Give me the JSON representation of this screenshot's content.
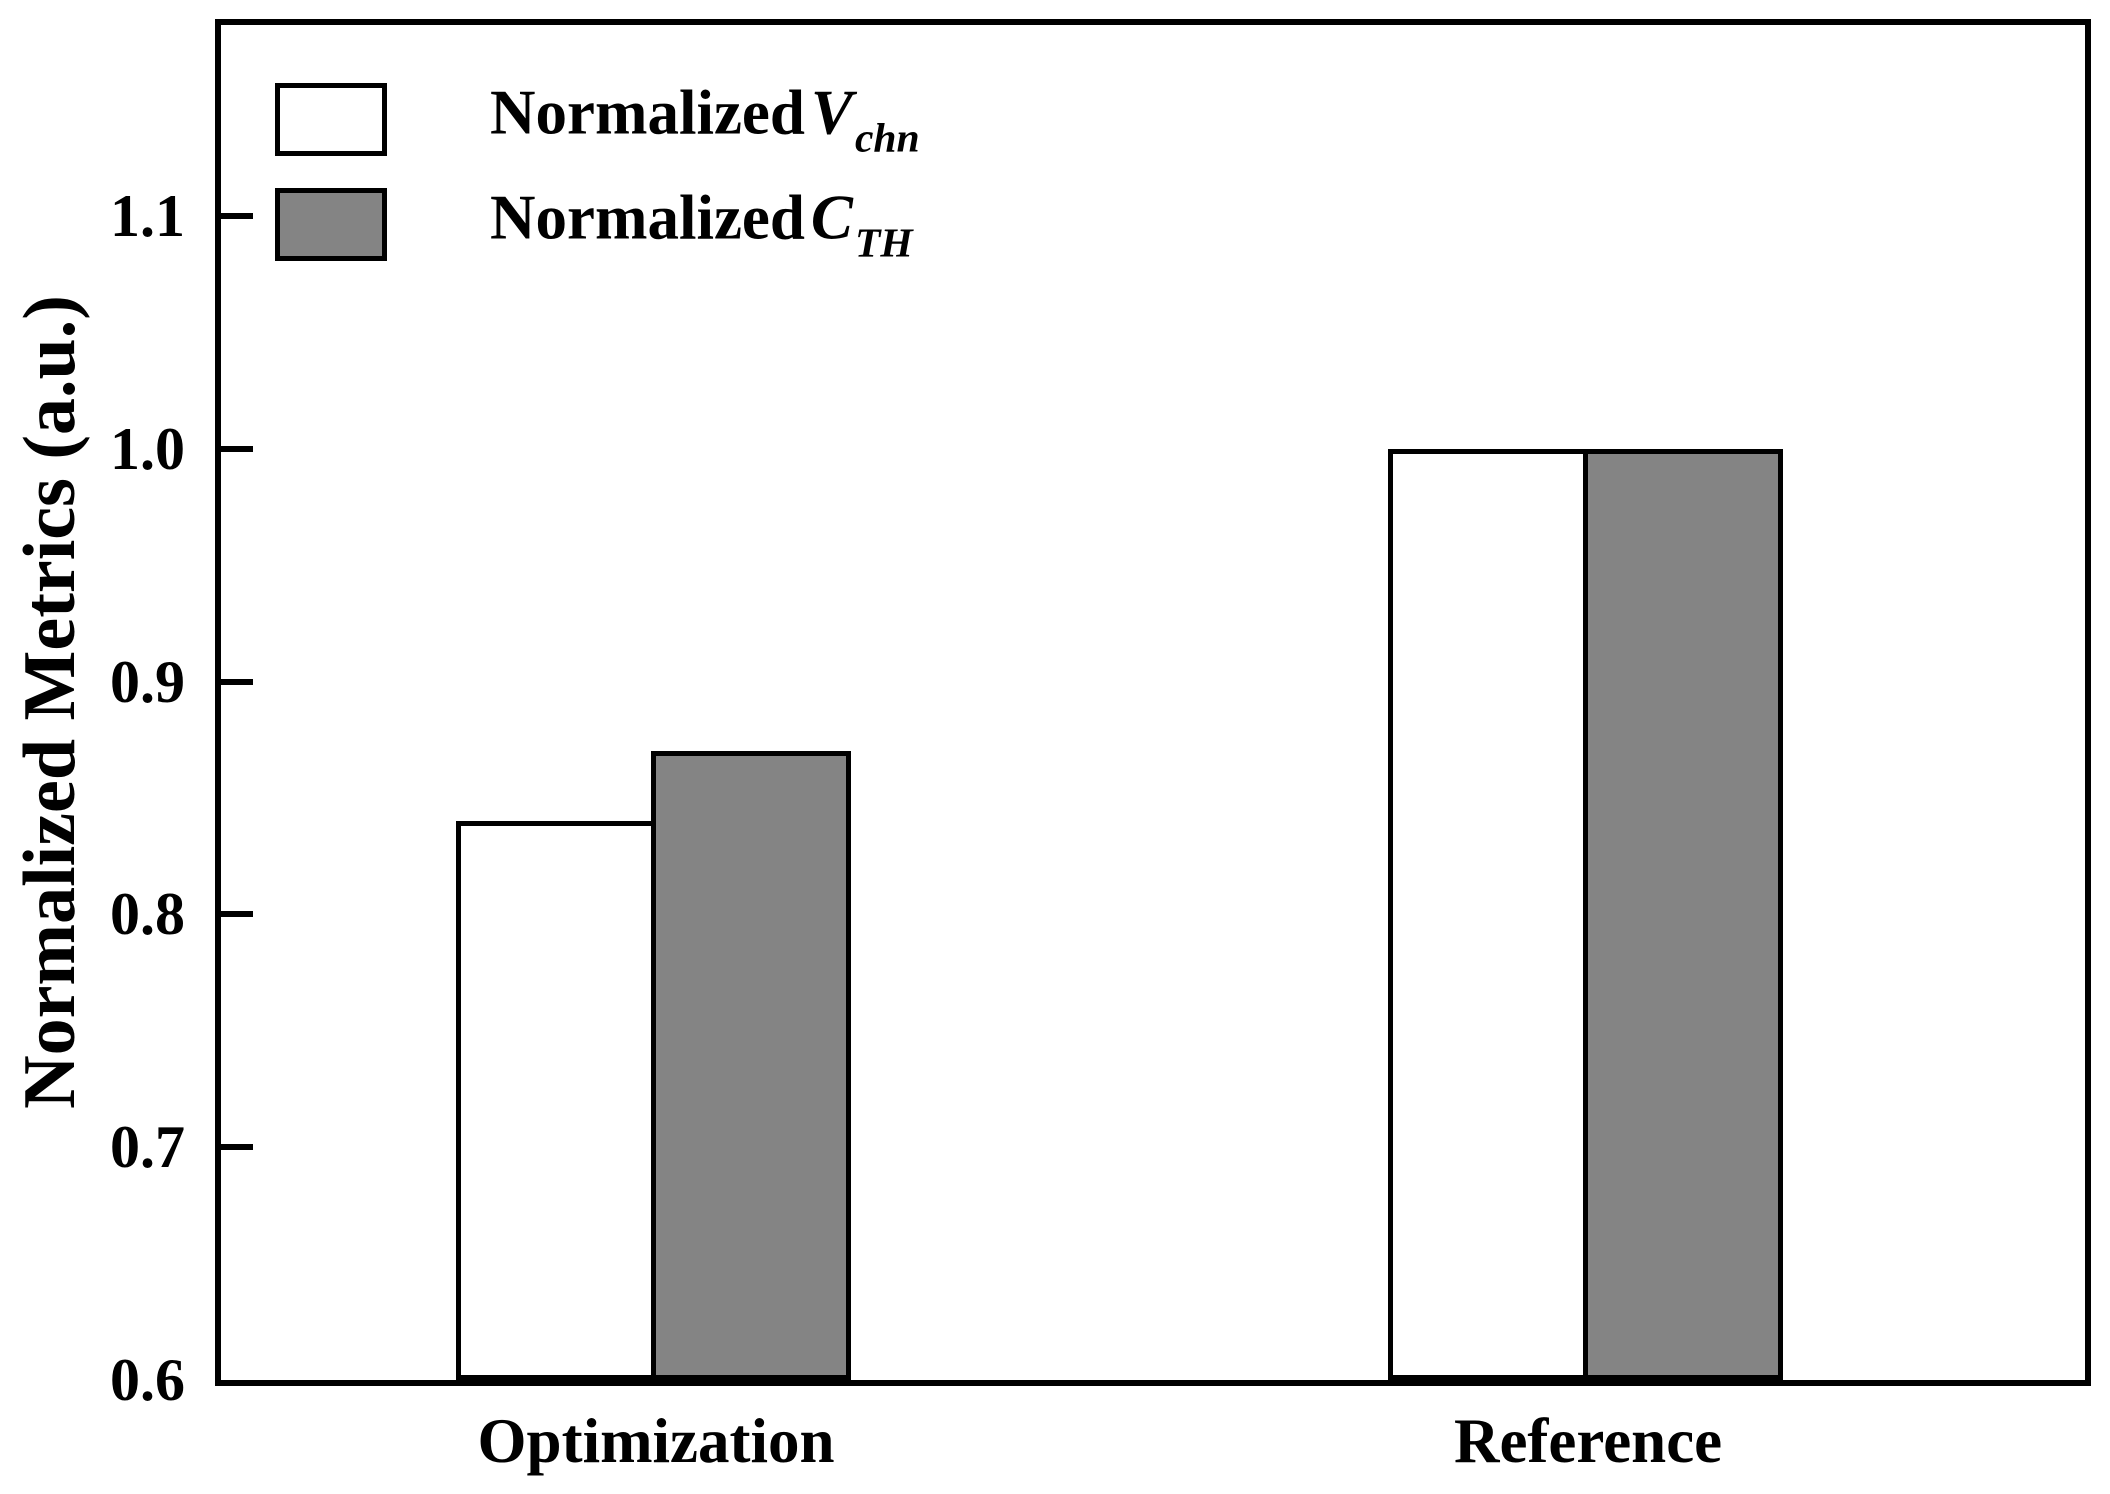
{
  "figure": {
    "background": "#ffffff",
    "frame_color": "#000000"
  },
  "chart_data": {
    "type": "bar",
    "title": "",
    "xlabel": "",
    "ylabel": "Normalized Metrics (a.u.)",
    "categories": [
      "Optimization",
      "Reference"
    ],
    "series": [
      {
        "name": "Normalized V_chn",
        "legend": {
          "prefix": "Normalized",
          "symbol": "V",
          "subscript": "chn"
        },
        "fill": "#ffffff",
        "values": [
          0.84,
          1.0
        ]
      },
      {
        "name": "Normalized C_TH",
        "legend": {
          "prefix": "Normalized",
          "symbol": "C",
          "subscript": "TH"
        },
        "fill": "#848484",
        "values": [
          0.87,
          1.0
        ]
      }
    ],
    "yticks": [
      0.6,
      0.7,
      0.8,
      0.9,
      1.0,
      1.1
    ],
    "ytick_labels": [
      "0.6",
      "0.7",
      "0.8",
      "0.9",
      "1.0",
      "1.1"
    ],
    "ylim": [
      0.6,
      1.182
    ],
    "grid": false,
    "legend_position": "top-left-inside",
    "bar_border_color": "#000000",
    "layout": {
      "group_centers_pct": [
        23.34,
        73.34
      ],
      "bar_width_pct": 10.73
    }
  }
}
